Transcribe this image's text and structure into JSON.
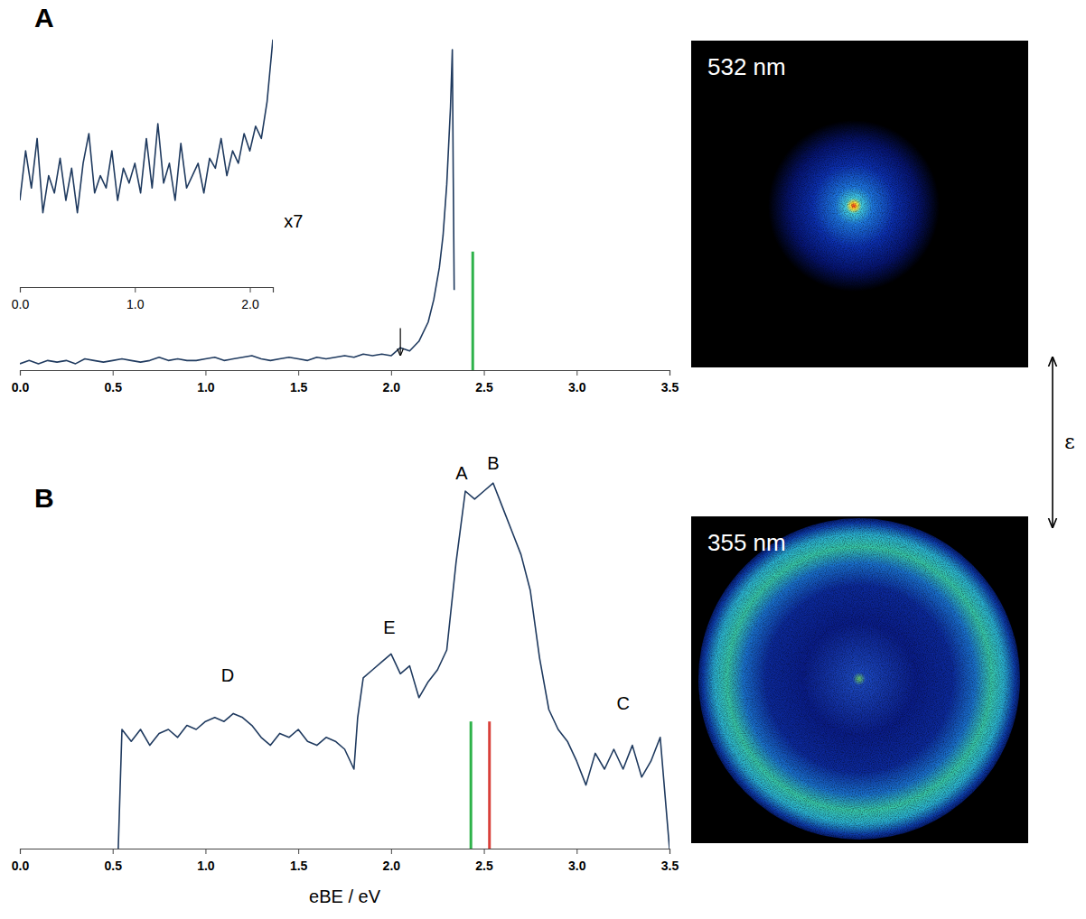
{
  "chart_data": [
    {
      "type": "line",
      "title": "A",
      "color": "#1f3a5f",
      "tick_labels": "x",
      "xlim": [
        0,
        3.5
      ],
      "ylim": [
        0,
        1.02
      ],
      "xticks": [
        {
          "value": 0,
          "label": "0.0"
        },
        0.5,
        {
          "value": 1,
          "label": "1.0"
        },
        1.5,
        {
          "value": 2,
          "label": "2.0"
        },
        2.5,
        {
          "value": 3,
          "label": "3.0"
        },
        3.5
      ],
      "x": [
        0,
        0.05,
        0.1,
        0.15,
        0.2,
        0.25,
        0.3,
        0.35,
        0.4,
        0.45,
        0.5,
        0.55,
        0.6,
        0.65,
        0.7,
        0.75,
        0.8,
        0.85,
        0.9,
        0.95,
        1.0,
        1.05,
        1.1,
        1.15,
        1.2,
        1.25,
        1.3,
        1.35,
        1.4,
        1.45,
        1.5,
        1.55,
        1.6,
        1.65,
        1.7,
        1.75,
        1.8,
        1.85,
        1.9,
        1.95,
        2.0,
        2.05,
        2.1,
        2.15,
        2.2,
        2.23,
        2.26,
        2.28,
        2.3,
        2.31,
        2.32,
        2.33,
        2.335,
        2.34
      ],
      "values": [
        0.02,
        0.03,
        0.02,
        0.03,
        0.025,
        0.03,
        0.02,
        0.035,
        0.03,
        0.025,
        0.03,
        0.035,
        0.03,
        0.025,
        0.03,
        0.04,
        0.03,
        0.035,
        0.03,
        0.03,
        0.035,
        0.04,
        0.03,
        0.035,
        0.04,
        0.045,
        0.035,
        0.03,
        0.035,
        0.04,
        0.035,
        0.03,
        0.04,
        0.035,
        0.04,
        0.045,
        0.04,
        0.05,
        0.045,
        0.05,
        0.045,
        0.07,
        0.06,
        0.09,
        0.15,
        0.22,
        0.32,
        0.42,
        0.58,
        0.7,
        0.82,
        1.0,
        0.6,
        0.25
      ],
      "lines": [
        {
          "x": 2.44,
          "y": 0.37,
          "color": "#2eb24a"
        }
      ],
      "arrow": {
        "x": 2.05,
        "y": 0.035
      }
    },
    {
      "type": "line",
      "color": "#1f3a5f",
      "tick_labels": "x",
      "xlim": [
        0,
        2.2
      ],
      "ylim": [
        0,
        1.05
      ],
      "xticks": [
        {
          "value": 0,
          "label": "0.0"
        },
        {
          "value": 1,
          "label": "1.0"
        },
        {
          "value": 2,
          "label": "2.0"
        }
      ],
      "x": [
        0,
        0.05,
        0.1,
        0.15,
        0.2,
        0.25,
        0.3,
        0.35,
        0.4,
        0.45,
        0.5,
        0.55,
        0.6,
        0.65,
        0.7,
        0.75,
        0.8,
        0.85,
        0.9,
        0.95,
        1.0,
        1.05,
        1.1,
        1.15,
        1.2,
        1.25,
        1.3,
        1.35,
        1.4,
        1.45,
        1.5,
        1.55,
        1.6,
        1.65,
        1.7,
        1.75,
        1.8,
        1.85,
        1.9,
        1.95,
        2.0,
        2.05,
        2.1,
        2.15,
        2.2
      ],
      "values": [
        0.35,
        0.55,
        0.4,
        0.6,
        0.3,
        0.45,
        0.38,
        0.52,
        0.35,
        0.48,
        0.3,
        0.5,
        0.62,
        0.38,
        0.45,
        0.4,
        0.55,
        0.35,
        0.48,
        0.42,
        0.5,
        0.38,
        0.6,
        0.4,
        0.66,
        0.42,
        0.5,
        0.35,
        0.58,
        0.4,
        0.45,
        0.5,
        0.38,
        0.52,
        0.48,
        0.6,
        0.45,
        0.55,
        0.5,
        0.62,
        0.55,
        0.65,
        0.6,
        0.75,
        1.0
      ],
      "annotations": [
        {
          "text": "x7",
          "x": 2.38,
          "y": 0.24
        }
      ]
    },
    {
      "type": "line",
      "title": "B",
      "x_label": "eBE / eV",
      "color": "#1f3a5f",
      "tick_labels": "x",
      "xlim": [
        0,
        3.5
      ],
      "ylim": [
        0,
        1
      ],
      "xticks": [
        {
          "value": 0,
          "label": "0.0"
        },
        0.5,
        {
          "value": 1,
          "label": "1.0"
        },
        1.5,
        {
          "value": 2,
          "label": "2.0"
        },
        2.5,
        {
          "value": 3,
          "label": "3.0"
        },
        3.5
      ],
      "x": [
        0.53,
        0.55,
        0.6,
        0.65,
        0.7,
        0.75,
        0.8,
        0.85,
        0.9,
        0.95,
        1.0,
        1.05,
        1.1,
        1.15,
        1.2,
        1.25,
        1.3,
        1.35,
        1.4,
        1.45,
        1.5,
        1.55,
        1.6,
        1.65,
        1.7,
        1.75,
        1.8,
        1.82,
        1.85,
        1.9,
        1.95,
        2.0,
        2.05,
        2.1,
        2.15,
        2.2,
        2.25,
        2.3,
        2.35,
        2.4,
        2.45,
        2.5,
        2.55,
        2.6,
        2.65,
        2.7,
        2.75,
        2.8,
        2.85,
        2.9,
        2.95,
        3.0,
        3.05,
        3.1,
        3.15,
        3.2,
        3.25,
        3.3,
        3.35,
        3.4,
        3.45,
        3.5
      ],
      "values": [
        0.0,
        0.3,
        0.27,
        0.3,
        0.26,
        0.29,
        0.3,
        0.28,
        0.31,
        0.3,
        0.32,
        0.33,
        0.32,
        0.34,
        0.33,
        0.31,
        0.28,
        0.26,
        0.29,
        0.28,
        0.3,
        0.27,
        0.26,
        0.28,
        0.27,
        0.25,
        0.2,
        0.33,
        0.43,
        0.45,
        0.47,
        0.49,
        0.44,
        0.46,
        0.38,
        0.42,
        0.45,
        0.5,
        0.72,
        0.9,
        0.88,
        0.9,
        0.92,
        0.86,
        0.8,
        0.74,
        0.65,
        0.48,
        0.35,
        0.3,
        0.27,
        0.22,
        0.16,
        0.24,
        0.2,
        0.25,
        0.2,
        0.26,
        0.18,
        0.22,
        0.28,
        0.0
      ],
      "lines": [
        {
          "x": 2.43,
          "y": 0.32,
          "color": "#2eb24a"
        },
        {
          "x": 2.53,
          "y": 0.32,
          "color": "#d9403a"
        }
      ],
      "annotations": [
        {
          "text": "A",
          "x": 2.38,
          "y": 0.93
        },
        {
          "text": "B",
          "x": 2.55,
          "y": 0.955
        },
        {
          "text": "E",
          "x": 1.99,
          "y": 0.54
        },
        {
          "text": "D",
          "x": 1.12,
          "y": 0.42
        },
        {
          "text": "C",
          "x": 3.25,
          "y": 0.35
        }
      ]
    }
  ],
  "images": [
    {
      "label": "532 nm"
    },
    {
      "label": "355 nm"
    }
  ],
  "polarization": "ε"
}
